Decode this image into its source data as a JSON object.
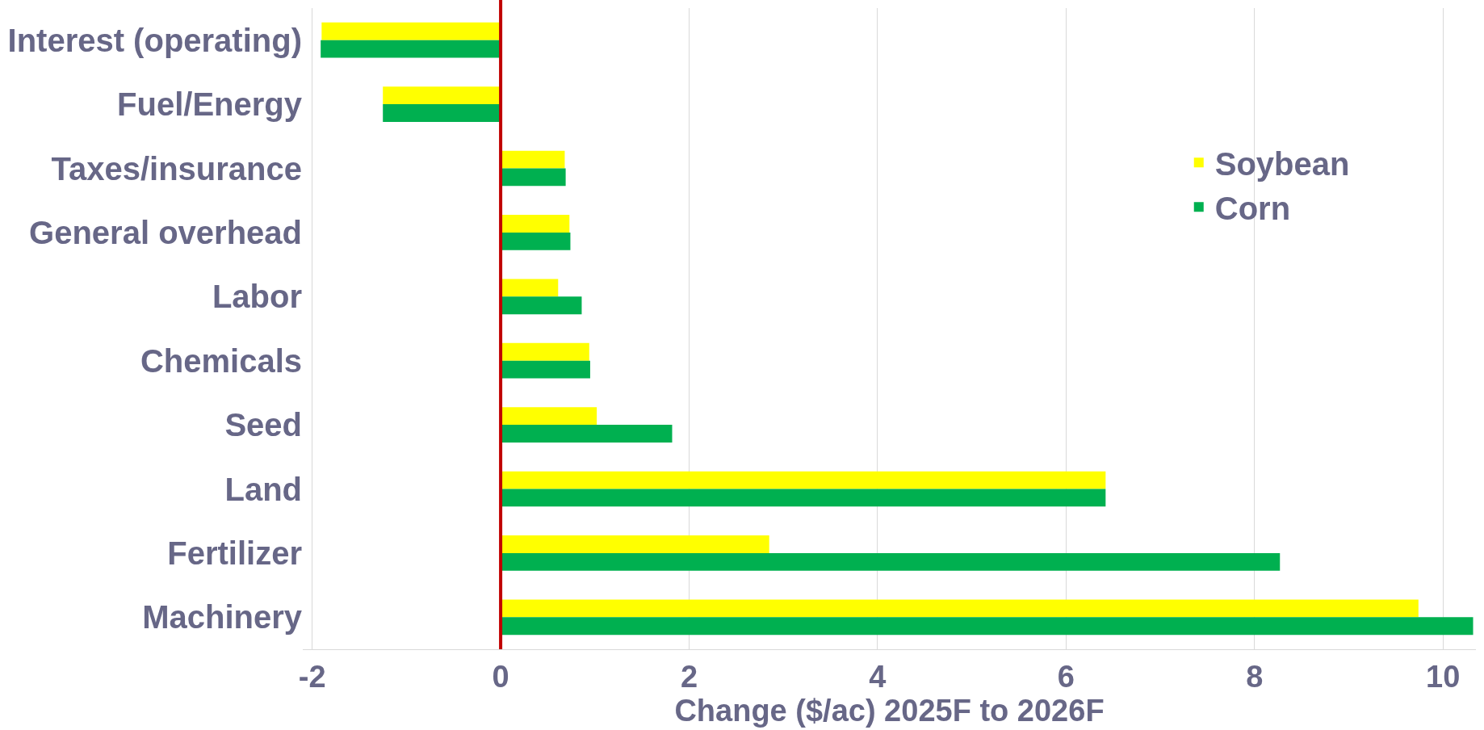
{
  "chart_data": {
    "type": "bar",
    "orientation": "horizontal",
    "xlabel": "Change ($/ac) 2025F to 2026F",
    "categories": [
      "Interest (operating)",
      "Fuel/Energy",
      "Taxes/insurance",
      "General overhead",
      "Labor",
      "Chemicals",
      "Seed",
      "Land",
      "Fertilizer",
      "Machinery"
    ],
    "series": [
      {
        "name": "Soybean",
        "color": "#ffff00",
        "values": [
          -1.9,
          -1.25,
          0.68,
          0.73,
          0.61,
          0.94,
          1.02,
          6.42,
          2.85,
          9.74
        ]
      },
      {
        "name": "Corn",
        "color": "#00b050",
        "values": [
          -1.91,
          -1.25,
          0.69,
          0.74,
          0.86,
          0.95,
          1.82,
          6.42,
          8.27,
          10.32
        ]
      }
    ],
    "xlim": [
      -2.1,
      10.35
    ],
    "xticks": [
      -2,
      0,
      2,
      4,
      6,
      8,
      10
    ],
    "ref_lines": [
      {
        "axis": "x",
        "value": 0,
        "color": "#c00000"
      }
    ],
    "grid": "x",
    "legend": "right"
  }
}
